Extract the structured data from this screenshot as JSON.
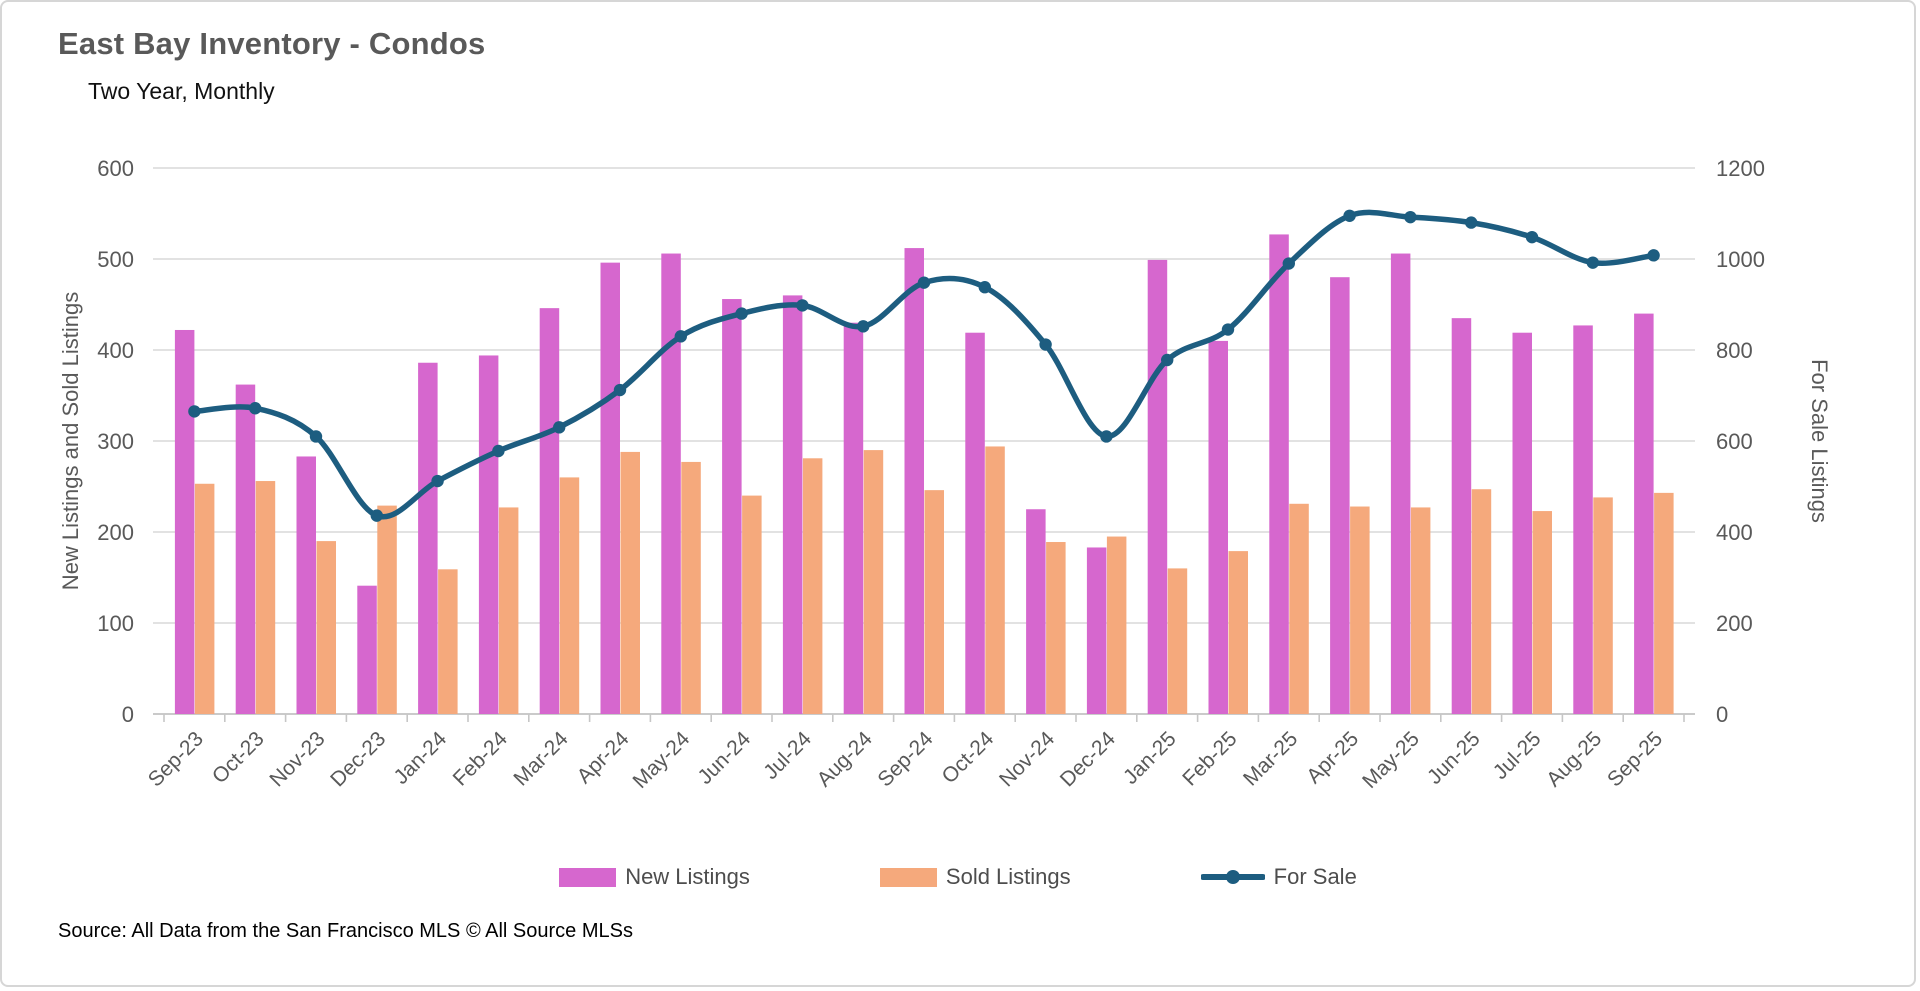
{
  "header": {
    "title": "East Bay Inventory - Condos",
    "subtitle": "Two Year, Monthly"
  },
  "source_note": "Source: All Data from the San Francisco MLS © All Source MLSs",
  "legend": [
    {
      "label": "New Listings",
      "swatch": "bar",
      "color": "#d667ce"
    },
    {
      "label": "Sold Listings",
      "swatch": "bar",
      "color": "#f5a97c"
    },
    {
      "label": "For Sale",
      "swatch": "line-marker",
      "color": "#1d5d80"
    }
  ],
  "colors": {
    "new_listings": "#d667ce",
    "sold_listings": "#f5a97c",
    "for_sale_line": "#1d5d80",
    "gridline": "#d9d9d9",
    "axis_text": "#595959",
    "title_text": "#595959"
  },
  "chart_data": {
    "type": "bar",
    "subtype": "grouped-bars-with-line",
    "title": "East Bay Inventory - Condos",
    "subtitle": "Two Year, Monthly",
    "grid": true,
    "legend_position": "bottom",
    "categories": [
      "Sep-23",
      "Oct-23",
      "Nov-23",
      "Dec-23",
      "Jan-24",
      "Feb-24",
      "Mar-24",
      "Apr-24",
      "May-24",
      "Jun-24",
      "Jul-24",
      "Aug-24",
      "Sep-24",
      "Oct-24",
      "Nov-24",
      "Dec-24",
      "Jan-25",
      "Feb-25",
      "Mar-25",
      "Apr-25",
      "May-25",
      "Jun-25",
      "Jul-25",
      "Aug-25",
      "Sep-25"
    ],
    "series": [
      {
        "name": "New Listings",
        "type": "bar",
        "axis": "left",
        "color": "#d667ce",
        "values": [
          422,
          362,
          283,
          141,
          386,
          394,
          446,
          496,
          506,
          456,
          460,
          430,
          512,
          419,
          225,
          183,
          499,
          410,
          527,
          480,
          506,
          435,
          419,
          427,
          440
        ]
      },
      {
        "name": "Sold Listings",
        "type": "bar",
        "axis": "left",
        "color": "#f5a97c",
        "values": [
          253,
          256,
          190,
          229,
          159,
          227,
          260,
          288,
          277,
          240,
          281,
          290,
          246,
          294,
          189,
          195,
          160,
          179,
          231,
          228,
          227,
          247,
          223,
          238,
          243
        ]
      },
      {
        "name": "For Sale",
        "type": "line",
        "axis": "right",
        "color": "#1d5d80",
        "values": [
          665,
          672,
          610,
          436,
          512,
          578,
          630,
          712,
          830,
          880,
          898,
          852,
          948,
          938,
          812,
          610,
          778,
          845,
          990,
          1095,
          1092,
          1080,
          1048,
          992,
          1008
        ]
      }
    ],
    "left_axis": {
      "label": "New Listings and Sold Listings",
      "min": 0,
      "max": 600,
      "step": 100,
      "tick_labels": [
        "0",
        "100",
        "200",
        "300",
        "400",
        "500",
        "600"
      ]
    },
    "right_axis": {
      "label": "For Sale Listings",
      "min": 0,
      "max": 1200,
      "step": 200,
      "tick_labels": [
        "0",
        "200",
        "400",
        "600",
        "800",
        "1000",
        "1200"
      ]
    }
  }
}
